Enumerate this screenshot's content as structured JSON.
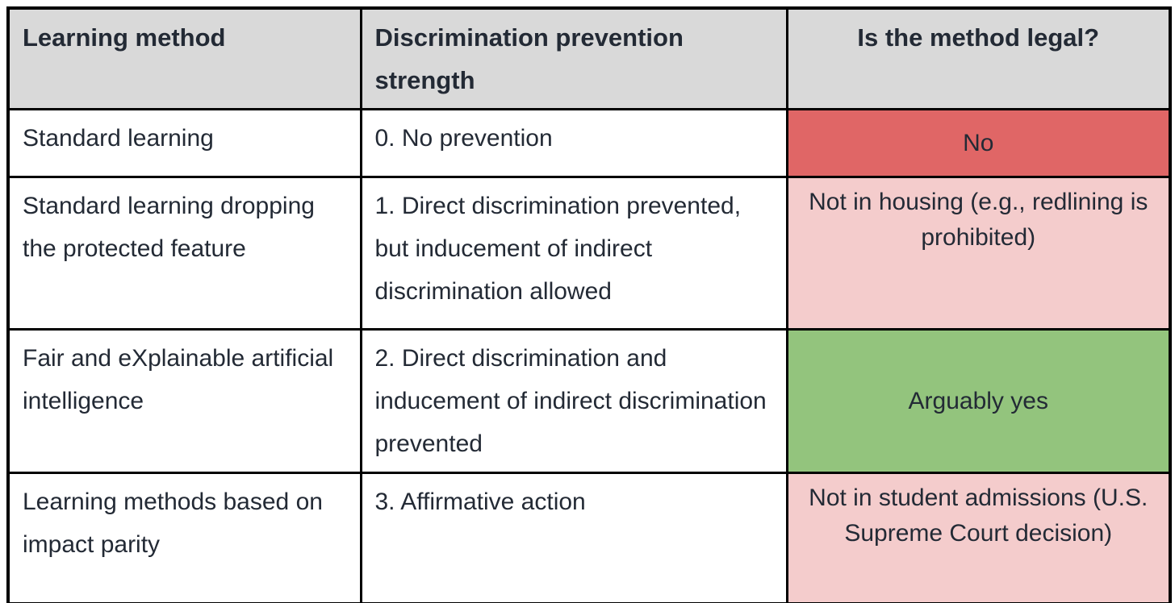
{
  "colors": {
    "page_bg": "#ffffff",
    "header_bg": "#d9d9d9",
    "red": "#e06666",
    "pink": "#f4cccc",
    "green": "#93c47d",
    "border": "#000000",
    "text": "#232a35"
  },
  "chart_data": {
    "type": "table",
    "columns": [
      "Learning method",
      "Discrimination prevention strength",
      "Is the method legal?"
    ],
    "rows": [
      {
        "method": "Standard learning",
        "strength": "0. No prevention",
        "legal": "No",
        "legal_color_name": "red",
        "legal_cell_color": "#e06666"
      },
      {
        "method": "Standard learning dropping the protected feature",
        "strength": "1. Direct discrimination prevented, but inducement of indirect discrimination allowed",
        "legal": "Not in housing (e.g., redlining is prohibited)",
        "legal_color_name": "pink",
        "legal_cell_color": "#f4cccc"
      },
      {
        "method": "Fair and eXplainable artificial intelligence",
        "strength": "2. Direct discrimination and inducement of indirect discrimination prevented",
        "legal": "Arguably yes",
        "legal_color_name": "green",
        "legal_cell_color": "#93c47d"
      },
      {
        "method": "Learning methods based on impact parity",
        "strength": "3. Affirmative action",
        "legal": "Not in student admissions (U.S. Supreme Court decision)",
        "legal_color_name": "pink",
        "legal_cell_color": "#f4cccc"
      }
    ]
  }
}
